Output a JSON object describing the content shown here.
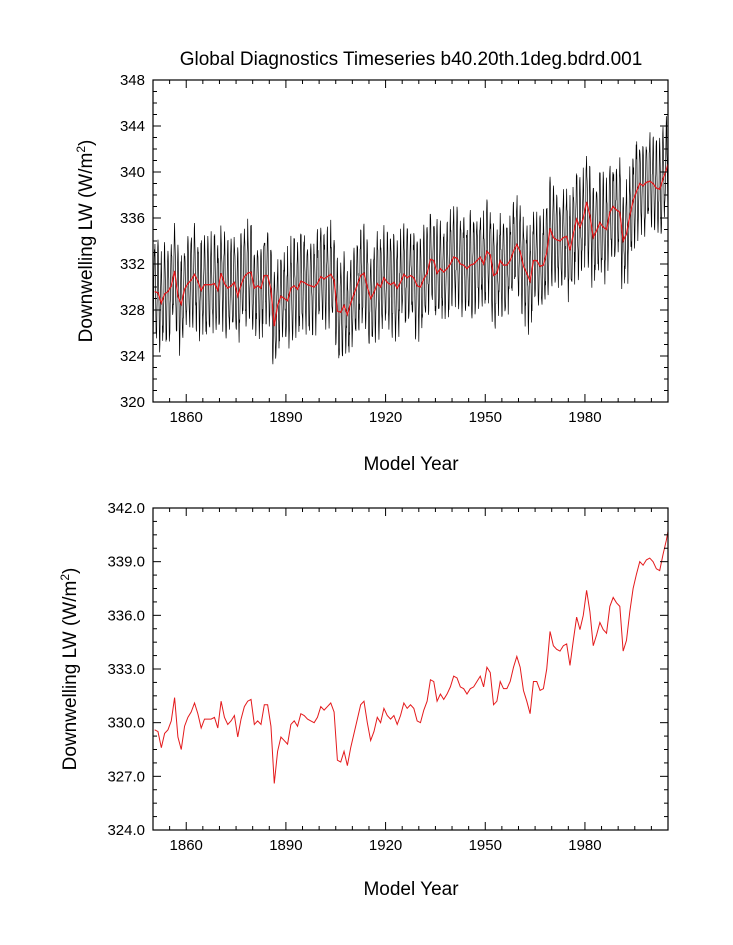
{
  "chart_data": [
    {
      "type": "line",
      "title": "Global Diagnostics Timeseries b40.20th.1deg.bdrd.001",
      "xlabel": "Model Year",
      "ylabel": "Downwelling LW (W/m",
      "ylabel_sup": "2",
      "ylabel_close": ")",
      "xlim": [
        1850,
        2005
      ],
      "ylim": [
        320,
        348
      ],
      "x_ticks": [
        1860,
        1890,
        1920,
        1950,
        1980
      ],
      "x_tick_labels": [
        "1860",
        "1890",
        "1920",
        "1950",
        "1980"
      ],
      "y_ticks": [
        320,
        324,
        328,
        332,
        336,
        340,
        344,
        348
      ],
      "y_tick_labels": [
        "320",
        "324",
        "328",
        "332",
        "336",
        "340",
        "344",
        "348"
      ],
      "series": [
        {
          "role": "monthly",
          "color": "#000000",
          "seasonal_amplitude": 3.8
        },
        {
          "role": "annual_mean",
          "color": "#e41a1c"
        }
      ]
    },
    {
      "type": "line",
      "title": "",
      "xlabel": "Model Year",
      "ylabel": "Downwelling LW (W/m",
      "ylabel_sup": "2",
      "ylabel_close": ")",
      "xlim": [
        1850,
        2005
      ],
      "ylim": [
        324,
        342
      ],
      "x_ticks": [
        1860,
        1890,
        1920,
        1950,
        1980
      ],
      "x_tick_labels": [
        "1860",
        "1890",
        "1920",
        "1950",
        "1980"
      ],
      "y_ticks": [
        324,
        327,
        330,
        333,
        336,
        339,
        342
      ],
      "y_tick_labels": [
        "324.0",
        "327.0",
        "330.0",
        "333.0",
        "336.0",
        "339.0",
        "342.0"
      ],
      "series": [
        {
          "role": "annual_mean",
          "color": "#e41a1c"
        }
      ]
    }
  ],
  "annual": {
    "x": [
      1850,
      1851,
      1852,
      1853,
      1854,
      1855,
      1856,
      1857,
      1858,
      1859,
      1860,
      1861,
      1862,
      1863,
      1864,
      1865,
      1866,
      1867,
      1868,
      1869,
      1870,
      1871,
      1872,
      1873,
      1874,
      1875,
      1876,
      1877,
      1878,
      1879,
      1880,
      1881,
      1882,
      1883,
      1884,
      1885,
      1886,
      1887,
      1888,
      1889,
      1890,
      1891,
      1892,
      1893,
      1894,
      1895,
      1896,
      1897,
      1898,
      1899,
      1900,
      1901,
      1902,
      1903,
      1904,
      1905,
      1906,
      1907,
      1908,
      1909,
      1910,
      1911,
      1912,
      1913,
      1914,
      1915,
      1916,
      1917,
      1918,
      1919,
      1920,
      1921,
      1922,
      1923,
      1924,
      1925,
      1926,
      1927,
      1928,
      1929,
      1930,
      1931,
      1932,
      1933,
      1934,
      1935,
      1936,
      1937,
      1938,
      1939,
      1940,
      1941,
      1942,
      1943,
      1944,
      1945,
      1946,
      1947,
      1948,
      1949,
      1950,
      1951,
      1952,
      1953,
      1954,
      1955,
      1956,
      1957,
      1958,
      1959,
      1960,
      1961,
      1962,
      1963,
      1964,
      1965,
      1966,
      1967,
      1968,
      1969,
      1970,
      1971,
      1972,
      1973,
      1974,
      1975,
      1976,
      1977,
      1978,
      1979,
      1980,
      1981,
      1982,
      1983,
      1984,
      1985,
      1986,
      1987,
      1988,
      1989,
      1990,
      1991,
      1992,
      1993,
      1994,
      1995,
      1996,
      1997,
      1998,
      1999,
      2000,
      2001,
      2002,
      2003,
      2004,
      2005
    ],
    "y": [
      329.6,
      329.5,
      328.6,
      329.4,
      329.6,
      330.1,
      331.4,
      329.2,
      328.5,
      329.8,
      330.3,
      330.6,
      331.1,
      330.5,
      329.7,
      330.2,
      330.2,
      330.2,
      330.3,
      329.7,
      331.2,
      330.3,
      329.9,
      330.1,
      330.4,
      329.2,
      330.2,
      330.9,
      331.2,
      331.3,
      329.9,
      330.1,
      329.9,
      331.0,
      331.0,
      329.8,
      326.6,
      328.4,
      329.2,
      329.0,
      328.8,
      329.9,
      330.1,
      329.8,
      330.5,
      330.4,
      330.2,
      330.1,
      330.0,
      330.3,
      330.9,
      330.7,
      330.9,
      331.1,
      330.6,
      327.9,
      327.8,
      328.4,
      327.6,
      328.6,
      329.4,
      330.2,
      331.0,
      331.2,
      330.0,
      329.0,
      329.5,
      330.3,
      330.0,
      330.8,
      330.4,
      330.2,
      330.4,
      329.9,
      330.4,
      331.1,
      330.8,
      331.0,
      330.8,
      330.1,
      330.0,
      330.7,
      331.2,
      332.4,
      332.3,
      331.2,
      331.6,
      331.3,
      331.6,
      332.0,
      332.6,
      332.5,
      332.0,
      331.9,
      331.6,
      331.9,
      332.0,
      332.3,
      332.6,
      332.0,
      333.1,
      332.8,
      331.0,
      331.2,
      332.3,
      331.9,
      331.9,
      332.3,
      333.1,
      333.7,
      333.1,
      331.8,
      331.2,
      330.5,
      332.3,
      332.3,
      331.8,
      331.9,
      333.0,
      335.1,
      334.3,
      334.1,
      334.0,
      334.3,
      334.4,
      333.2,
      334.6,
      335.9,
      335.2,
      336.0,
      337.4,
      336.2,
      334.3,
      334.9,
      335.6,
      335.2,
      335.0,
      336.5,
      337.0,
      336.7,
      336.5,
      334.0,
      334.6,
      336.2,
      337.5,
      338.3,
      339.0,
      338.8,
      339.1,
      339.2,
      339.0,
      338.6,
      338.5,
      339.4,
      340.2,
      340.7
    ]
  }
}
